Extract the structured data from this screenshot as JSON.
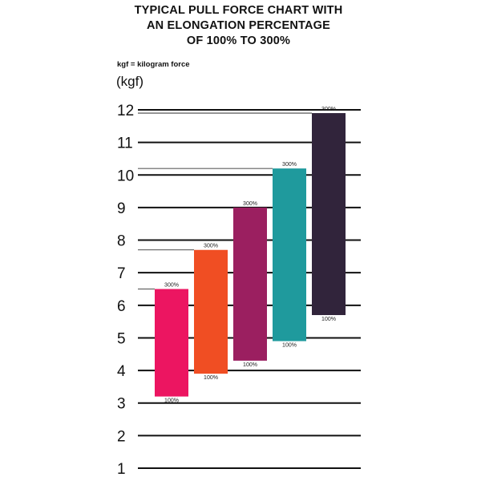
{
  "chart_data": {
    "type": "bar",
    "title_lines": [
      "TYPICAL PULL FORCE CHART WITH",
      "AN ELONGATION PERCENTAGE",
      "OF 100% TO 300%"
    ],
    "note": "kgf = kilogram force",
    "ylabel": "(kgf)",
    "ylim": [
      1,
      12
    ],
    "yticks": [
      "1",
      "2",
      "3",
      "4",
      "5",
      "6",
      "7",
      "8",
      "9",
      "10",
      "11",
      "12"
    ],
    "grid": true,
    "series": [
      {
        "low": 3.2,
        "high": 6.5,
        "low_label": "100%",
        "high_label": "300%",
        "color": "#ec1561"
      },
      {
        "low": 3.9,
        "high": 7.7,
        "low_label": "100%",
        "high_label": "300%",
        "color": "#f04e23"
      },
      {
        "low": 4.3,
        "high": 9.0,
        "low_label": "100%",
        "high_label": "300%",
        "color": "#9b1f60"
      },
      {
        "low": 4.9,
        "high": 10.2,
        "low_label": "100%",
        "high_label": "300%",
        "color": "#1f9a9d"
      },
      {
        "low": 5.7,
        "high": 11.9,
        "low_label": "100%",
        "high_label": "300%",
        "color": "#31243b"
      }
    ]
  }
}
